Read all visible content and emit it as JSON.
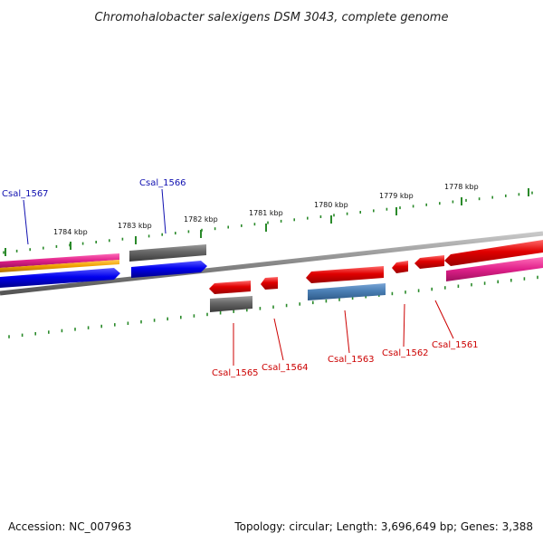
{
  "title": "Chromohalobacter salexigens DSM 3043, complete genome",
  "footer": {
    "accession": "Accession: NC_007963",
    "summary": "Topology: circular; Length: 3,696,649 bp; Genes: 3,388"
  },
  "scale_labels": [
    "1784 kbp",
    "1783 kbp",
    "1782 kbp",
    "1781 kbp",
    "1780 kbp",
    "1779 kbp",
    "1778 kbp"
  ],
  "gene_labels": {
    "top": [
      "Csal_1567",
      "Csal_1566"
    ],
    "bottom": [
      "Csal_1565",
      "Csal_1564",
      "Csal_1563",
      "Csal_1562",
      "Csal_1561"
    ]
  },
  "colors": {
    "forward_gene": "#e00000",
    "reverse_gene": "#0000ee",
    "pseudo_gene": "#666666",
    "rna_feature": "#4a7fb5",
    "magenta_feature": "#e0208a",
    "orange_feature": "#f0a000",
    "backbone": "#888888",
    "ticks": "#2a8a2a",
    "top_label": "#1010b0",
    "bottom_label": "#cc0000"
  }
}
